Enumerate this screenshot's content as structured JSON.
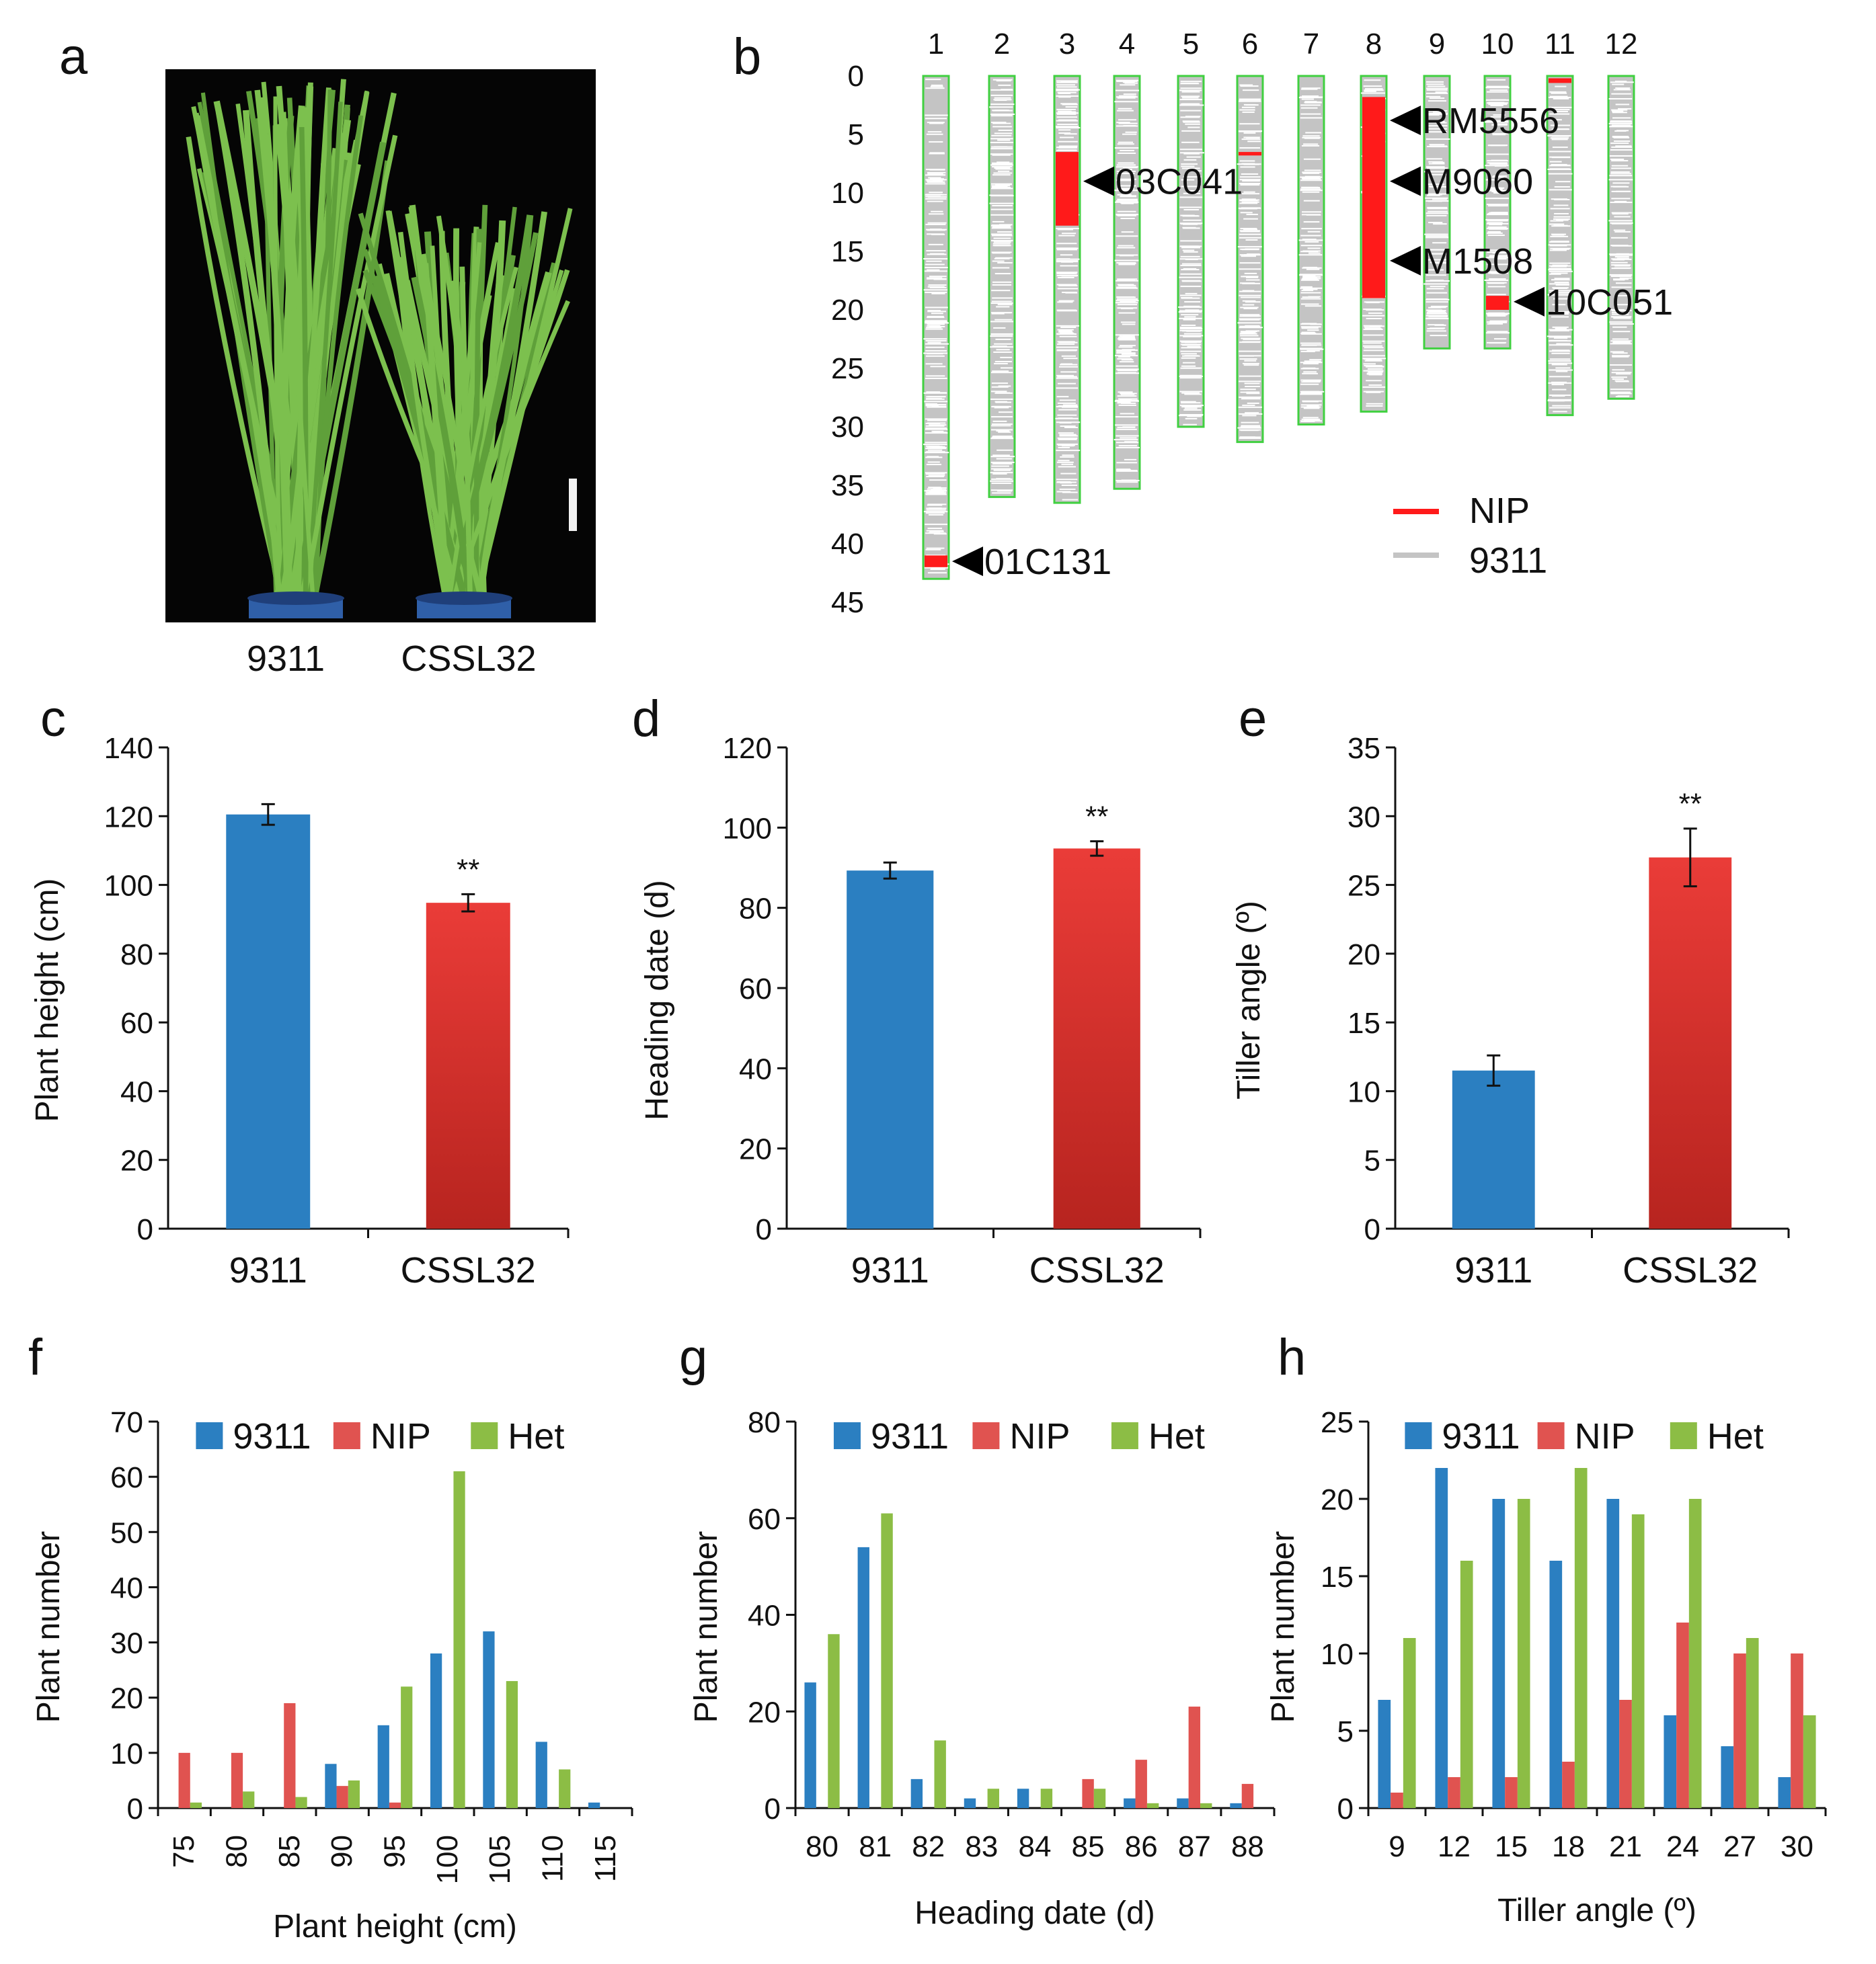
{
  "colors": {
    "blue": "#2b7fc1",
    "red_top": "#ea3c38",
    "red_bottom": "#b7241f",
    "f_blue": "#2b7fc1",
    "f_red": "#e05350",
    "f_green": "#8cbd45",
    "nip": "#ff1a1a",
    "grey": "#c4c4c4",
    "chrom_border": "#40d040"
  },
  "panel_a": {
    "label": "a",
    "caption_left": "9311",
    "caption_right": "CSSL32"
  },
  "panel_b": {
    "label": "b",
    "chromosomes": [
      "1",
      "2",
      "3",
      "4",
      "5",
      "6",
      "7",
      "8",
      "9",
      "10",
      "11",
      "12"
    ],
    "chrom_lengths": [
      43,
      36,
      36.5,
      35.3,
      30,
      31.3,
      29.8,
      28.7,
      23.3,
      23.3,
      29,
      27.6
    ],
    "y_ticks": [
      0,
      5,
      10,
      15,
      20,
      25,
      30,
      35,
      40,
      45
    ],
    "nip_segments": [
      {
        "chrom": 1,
        "start": 41.0,
        "end": 42.0
      },
      {
        "chrom": 3,
        "start": 6.5,
        "end": 12.8
      },
      {
        "chrom": 8,
        "start": 1.8,
        "end": 19.0
      },
      {
        "chrom": 10,
        "start": 18.8,
        "end": 20.0
      },
      {
        "chrom": 11,
        "start": 0.2,
        "end": 0.6
      },
      {
        "chrom": 6,
        "start": 6.5,
        "end": 6.8
      }
    ],
    "markers": [
      {
        "name": "01C131",
        "chrom": 1,
        "pos": 41.5
      },
      {
        "name": "03C041",
        "chrom": 3,
        "pos": 9.0
      },
      {
        "name": "RM5556",
        "chrom": 8,
        "pos": 3.8
      },
      {
        "name": "M9060",
        "chrom": 8,
        "pos": 9.0
      },
      {
        "name": "M1508",
        "chrom": 8,
        "pos": 15.8
      },
      {
        "name": "10C051",
        "chrom": 10,
        "pos": 19.3
      }
    ],
    "legend": [
      {
        "label": "NIP",
        "color": "#ff1a1a"
      },
      {
        "label": "9311",
        "color": "#c4c4c4"
      }
    ]
  },
  "chart_data": [
    {
      "id": "c",
      "type": "bar",
      "label": "c",
      "categories": [
        "9311",
        "CSSL32"
      ],
      "values": [
        120.5,
        94.8
      ],
      "errors": [
        3,
        2.5
      ],
      "ylabel": "Plant height (cm)",
      "ylim": [
        0,
        140
      ],
      "yticks": [
        0,
        20,
        40,
        60,
        80,
        100,
        120,
        140
      ],
      "annotations": [
        {
          "category": "CSSL32",
          "text": "**"
        }
      ]
    },
    {
      "id": "d",
      "type": "bar",
      "label": "d",
      "categories": [
        "9311",
        "CSSL32"
      ],
      "values": [
        89.3,
        94.8
      ],
      "errors": [
        2,
        1.8
      ],
      "ylabel": "Heading date  (d)",
      "ylim": [
        0,
        120
      ],
      "yticks": [
        0,
        20,
        40,
        60,
        80,
        100,
        120
      ],
      "annotations": [
        {
          "category": "CSSL32",
          "text": "**"
        }
      ]
    },
    {
      "id": "e",
      "type": "bar",
      "label": "e",
      "categories": [
        "9311",
        "CSSL32"
      ],
      "values": [
        11.5,
        27.0
      ],
      "errors": [
        1.1,
        2.1
      ],
      "ylabel": "Tiller angle (º)",
      "ylim": [
        0,
        35
      ],
      "yticks": [
        0,
        5,
        10,
        15,
        20,
        25,
        30,
        35
      ],
      "annotations": [
        {
          "category": "CSSL32",
          "text": "**"
        }
      ]
    },
    {
      "id": "f",
      "type": "bar",
      "label": "f",
      "categories": [
        "75",
        "80",
        "85",
        "90",
        "95",
        "100",
        "105",
        "110",
        "115"
      ],
      "series": [
        {
          "name": "9311",
          "values": [
            0,
            0,
            0,
            8,
            15,
            28,
            32,
            12,
            1
          ]
        },
        {
          "name": "NIP",
          "values": [
            10,
            10,
            19,
            4,
            1,
            0,
            0,
            0,
            0
          ]
        },
        {
          "name": "Het",
          "values": [
            1,
            3,
            2,
            5,
            22,
            61,
            23,
            7,
            0
          ]
        }
      ],
      "xlabel": "Plant height (cm)",
      "ylabel": "Plant number",
      "ylim": [
        0,
        70
      ],
      "yticks": [
        0,
        10,
        20,
        30,
        40,
        50,
        60,
        70
      ],
      "legend": "top"
    },
    {
      "id": "g",
      "type": "bar",
      "label": "g",
      "categories": [
        "80",
        "81",
        "82",
        "83",
        "84",
        "85",
        "86",
        "87",
        "88"
      ],
      "series": [
        {
          "name": "9311",
          "values": [
            26,
            54,
            6,
            2,
            4,
            0,
            2,
            2,
            1
          ]
        },
        {
          "name": "NIP",
          "values": [
            0,
            0,
            0,
            0,
            0,
            6,
            10,
            21,
            5
          ]
        },
        {
          "name": "Het",
          "values": [
            36,
            61,
            14,
            4,
            4,
            4,
            1,
            1,
            0
          ]
        }
      ],
      "xlabel": "Heading date (d)",
      "ylabel": "Plant number",
      "ylim": [
        0,
        80
      ],
      "yticks": [
        0,
        20,
        40,
        60,
        80
      ],
      "legend": "top"
    },
    {
      "id": "h",
      "type": "bar",
      "label": "h",
      "categories": [
        "9",
        "12",
        "15",
        "18",
        "21",
        "24",
        "27",
        "30"
      ],
      "series": [
        {
          "name": "9311",
          "values": [
            7,
            22,
            20,
            16,
            20,
            6,
            4,
            2
          ]
        },
        {
          "name": "NIP",
          "values": [
            1,
            2,
            2,
            3,
            7,
            12,
            10,
            10
          ]
        },
        {
          "name": "Het",
          "values": [
            11,
            16,
            20,
            22,
            19,
            20,
            11,
            6
          ]
        }
      ],
      "xlabel": "Tiller angle (º)",
      "ylabel": "Plant number",
      "ylim": [
        0,
        25
      ],
      "yticks": [
        0,
        5,
        10,
        15,
        20,
        25
      ],
      "legend": "top"
    }
  ]
}
